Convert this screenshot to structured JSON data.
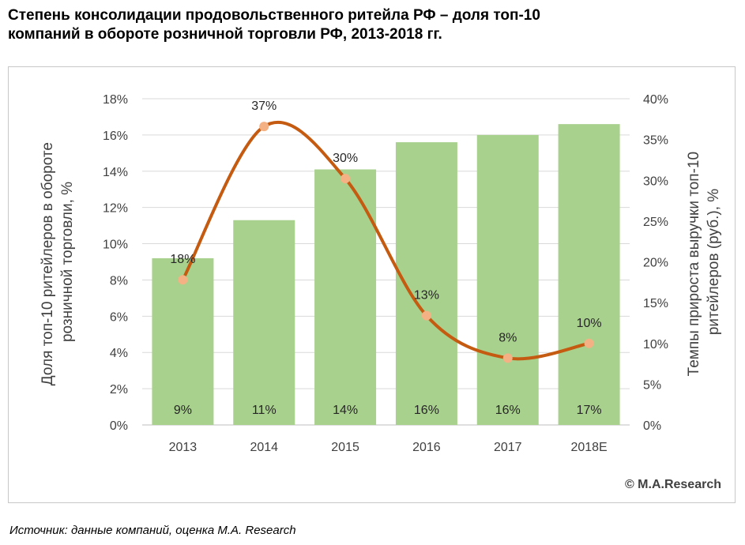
{
  "title": {
    "line1": "Степень консолидации продовольственного ритейла РФ – доля топ-10",
    "line2": "компаний в обороте розничной торговли РФ, 2013-2018 гг."
  },
  "source": "Источник: данные компаний, оценка M.A. Research",
  "copyright": "© M.A.Research",
  "colors": {
    "bars": "#a9d18e",
    "line": "#c55a11",
    "markers": "#f4b183",
    "grid": "#d9d9d9"
  },
  "chart_data": {
    "type": "bar",
    "categories": [
      "2013",
      "2014",
      "2015",
      "2016",
      "2017",
      "2018E"
    ],
    "series": [
      {
        "type": "bar",
        "axis": "left",
        "values": [
          9.2,
          11.3,
          14.1,
          15.6,
          16.0,
          16.6
        ],
        "labels": [
          "9%",
          "11%",
          "14%",
          "16%",
          "16%",
          "17%"
        ]
      },
      {
        "type": "line",
        "axis": "right",
        "values": [
          17.8,
          36.6,
          30.2,
          13.4,
          8.2,
          10.0
        ],
        "labels": [
          "18%",
          "37%",
          "30%",
          "13%",
          "8%",
          "10%"
        ]
      }
    ],
    "ylabel": "Доля топ-10 ритейлеров в обороте розничной торговли, %",
    "ylabel_lines": [
      "Доля топ-10 ритейлеров в обороте",
      "розничной торговли, %"
    ],
    "y2label": "Темпы прироста выручки топ-10 ритейлеров (руб.), %",
    "y2label_lines": [
      "Темпы прироста выручки топ-10",
      "ритейлеров (руб.), %"
    ],
    "ylim": [
      0,
      18
    ],
    "y2lim": [
      0,
      40
    ],
    "yticks": [
      "0%",
      "2%",
      "4%",
      "6%",
      "8%",
      "10%",
      "12%",
      "14%",
      "16%",
      "18%"
    ],
    "y2ticks": [
      "0%",
      "5%",
      "10%",
      "15%",
      "20%",
      "25%",
      "30%",
      "35%",
      "40%"
    ],
    "grid": true,
    "legend": "none"
  }
}
